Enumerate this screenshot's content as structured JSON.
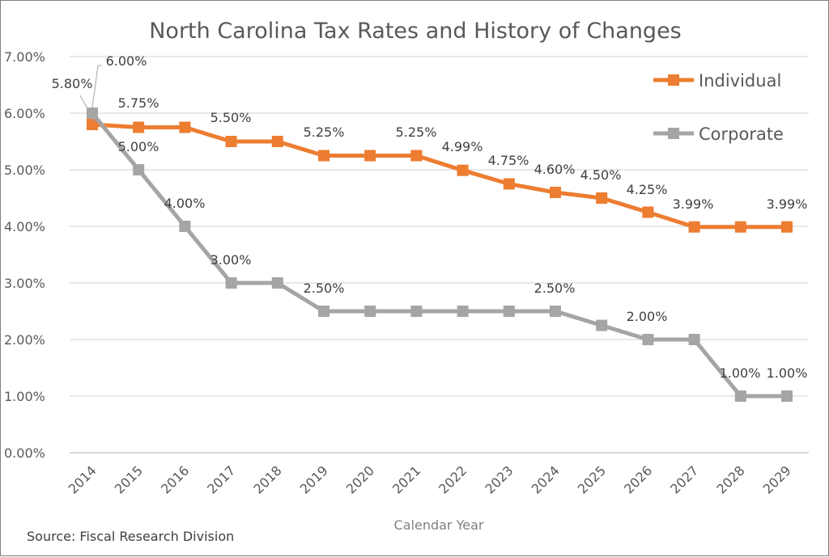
{
  "chart_data": {
    "type": "line",
    "title": "North Carolina Tax Rates and History of Changes",
    "xlabel": "Calendar Year",
    "ylabel": "",
    "source": "Source: Fiscal Research Division",
    "categories": [
      "2014",
      "2015",
      "2016",
      "2017",
      "2018",
      "2019",
      "2020",
      "2021",
      "2022",
      "2023",
      "2024",
      "2025",
      "2026",
      "2027",
      "2028",
      "2029"
    ],
    "ylim": [
      0,
      7
    ],
    "yticks": [
      "0.00%",
      "1.00%",
      "2.00%",
      "3.00%",
      "4.00%",
      "5.00%",
      "6.00%",
      "7.00%"
    ],
    "grid": true,
    "legend_position": "top-right",
    "series": [
      {
        "name": "Individual",
        "color": "#ed7d31",
        "values": [
          5.8,
          5.75,
          5.75,
          5.5,
          5.5,
          5.25,
          5.25,
          5.25,
          4.99,
          4.75,
          4.6,
          4.5,
          4.25,
          3.99,
          3.99,
          3.99
        ],
        "labels": {
          "2014": "5.80%",
          "2015": "5.75%",
          "2017": "5.50%",
          "2019": "5.25%",
          "2021": "5.25%",
          "2022": "4.99%",
          "2023": "4.75%",
          "2024": "4.60%",
          "2025": "4.50%",
          "2026": "4.25%",
          "2027": "3.99%",
          "2029": "3.99%"
        }
      },
      {
        "name": "Corporate",
        "color": "#a5a5a5",
        "values": [
          6.0,
          5.0,
          4.0,
          3.0,
          3.0,
          2.5,
          2.5,
          2.5,
          2.5,
          2.5,
          2.5,
          2.25,
          2.0,
          2.0,
          1.0,
          1.0
        ],
        "labels": {
          "2014": "6.00%",
          "2015": "5.00%",
          "2016": "4.00%",
          "2017": "3.00%",
          "2019": "2.50%",
          "2024": "2.50%",
          "2026": "2.00%",
          "2028": "1.00%",
          "2029": "1.00%"
        }
      }
    ]
  }
}
